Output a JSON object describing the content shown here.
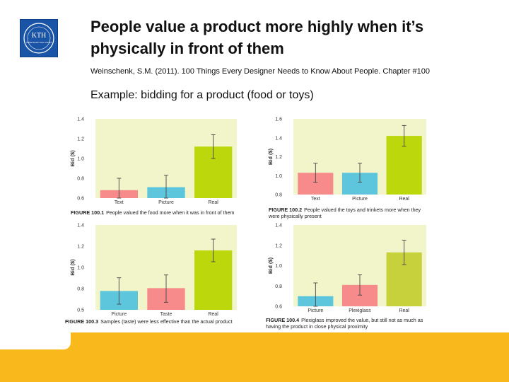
{
  "logo": {
    "text": "KTH",
    "subtext": "VETENSKAP OCH KONST"
  },
  "title": "People value a product more highly when it’s physically in front of them",
  "citation": "Weinschenk, S.M. (2011). 100 Things Every Designer Needs to Know About People. Chapter #100",
  "example": "Example: bidding for a product (food or toys)",
  "colors": {
    "red": "#f78b8b",
    "blue": "#5ec6dc",
    "green": "#bcd70c",
    "olive": "#c7d13c",
    "bg": "#f1f5c9",
    "footer": "#f9b91d"
  },
  "chart_data": [
    {
      "type": "bar",
      "ylabel": "Bid ($)",
      "categories": [
        "Text",
        "Picture",
        "Real"
      ],
      "values": [
        0.68,
        0.71,
        1.12
      ],
      "errors": [
        [
          0.57,
          0.8
        ],
        [
          0.55,
          0.83
        ],
        [
          1.0,
          1.24
        ]
      ],
      "ylim": [
        0.6,
        1.4
      ],
      "yticks": [
        "0.6",
        "0.8",
        "1.0",
        "1.2",
        "1.4"
      ],
      "bar_colors": [
        "#f78b8b",
        "#5ec6dc",
        "#bcd70c"
      ],
      "caption_label": "FIGURE 100.1",
      "caption_text": "People valued the food more when it was in front of them"
    },
    {
      "type": "bar",
      "ylabel": "Bid ($)",
      "categories": [
        "Text",
        "Picture",
        "Real"
      ],
      "values": [
        1.03,
        1.03,
        1.42
      ],
      "errors": [
        [
          0.93,
          1.13
        ],
        [
          0.93,
          1.13
        ],
        [
          1.31,
          1.53
        ]
      ],
      "ylim": [
        0.8,
        1.6
      ],
      "yticks": [
        "0.8",
        "1.0",
        "1.2",
        "1.4",
        "1.6"
      ],
      "bar_colors": [
        "#f78b8b",
        "#5ec6dc",
        "#bcd70c"
      ],
      "caption_label": "FIGURE 100.2",
      "caption_text": "People valued the toys and trinkets more when they were physically present"
    },
    {
      "type": "bar",
      "ylabel": "Bid ($)",
      "categories": [
        "Picture",
        "Taste",
        "Real"
      ],
      "values": [
        0.7,
        0.73,
        1.13
      ],
      "errors": [
        [
          0.56,
          0.84
        ],
        [
          0.58,
          0.87
        ],
        [
          1.01,
          1.25
        ]
      ],
      "ylim": [
        0.5,
        1.4
      ],
      "yticks": [
        "0.5",
        "0.8",
        "1.0",
        "1.2",
        "1.4"
      ],
      "bar_colors": [
        "#5ec6dc",
        "#f78b8b",
        "#bcd70c"
      ],
      "caption_label": "FIGURE 100.3",
      "caption_text": "Samples (taste) were less effective than the actual product"
    },
    {
      "type": "bar",
      "ylabel": "Bid ($)",
      "categories": [
        "Picture",
        "Plexiglass",
        "Real"
      ],
      "values": [
        0.7,
        0.81,
        1.13
      ],
      "errors": [
        [
          0.58,
          0.83
        ],
        [
          0.71,
          0.91
        ],
        [
          1.01,
          1.25
        ]
      ],
      "ylim": [
        0.6,
        1.4
      ],
      "yticks": [
        "0.6",
        "0.8",
        "1.0",
        "1.2",
        "1.4"
      ],
      "bar_colors": [
        "#5ec6dc",
        "#f78b8b",
        "#c7d13c"
      ],
      "caption_label": "FIGURE 100.4",
      "caption_text": "Plexiglass improved the value, but still not as much as having the product in close physical proximity"
    }
  ]
}
